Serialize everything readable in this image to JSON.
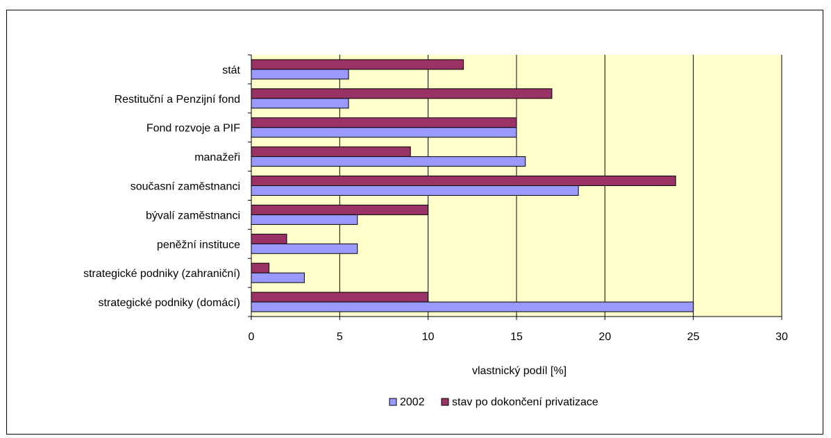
{
  "chart_data": {
    "type": "bar",
    "orientation": "horizontal",
    "categories": [
      "stát",
      "Restituční a Penzijní fond",
      "Fond rozvoje a PIF",
      "manažeři",
      "současní zaměstnanci",
      "bývalí zaměstnanci",
      "peněžní instituce",
      "strategické podniky (zahraniční)",
      "strategické podniky (domácí)"
    ],
    "series": [
      {
        "name": "2002",
        "color": "#9999FF",
        "values": [
          5.5,
          5.5,
          15,
          15.5,
          18.5,
          6,
          6,
          3,
          25
        ]
      },
      {
        "name": "stav po dokončení privatizace",
        "color": "#993366",
        "values": [
          12,
          17,
          15,
          9,
          24,
          10,
          2,
          1,
          10
        ]
      }
    ],
    "xlabel": "vlastnický podíl [%]",
    "ylabel": "",
    "xlim": [
      0,
      30
    ],
    "xticks": [
      "0",
      "5",
      "10",
      "15",
      "20",
      "25",
      "30"
    ],
    "grid": "vertical major gridlines",
    "plot_background": "#FFFFCC",
    "legend_position": "bottom"
  }
}
